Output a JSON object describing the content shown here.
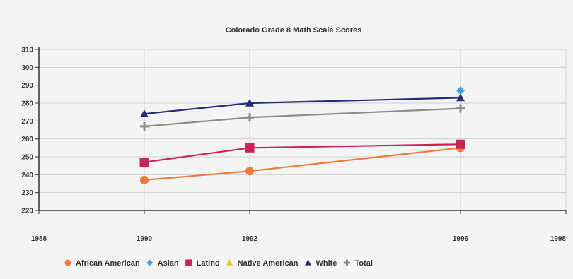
{
  "chart_data": {
    "type": "line",
    "title": "Colorado Grade 8 Math Scale Scores",
    "xlabel": "",
    "ylabel": "",
    "xlim": [
      1988,
      1998
    ],
    "ylim": [
      220,
      310
    ],
    "x_ticks": [
      "1988",
      "1990",
      "1992",
      "1996",
      "1998"
    ],
    "x_tick_values": [
      1988,
      1990,
      1992,
      1996,
      1998
    ],
    "y_ticks": [
      220,
      230,
      240,
      250,
      260,
      270,
      280,
      290,
      300,
      310
    ],
    "grid": true,
    "legend_position": "bottom",
    "series": [
      {
        "name": "African American",
        "color": "#f07a3a",
        "marker": "circle",
        "x": [
          1990,
          1992,
          1996
        ],
        "values": [
          237,
          242,
          255
        ]
      },
      {
        "name": "Asian",
        "color": "#3aa6d8",
        "marker": "diamond",
        "x": [
          1996
        ],
        "values": [
          287
        ]
      },
      {
        "name": "Latino",
        "color": "#c8245a",
        "marker": "square",
        "x": [
          1990,
          1992,
          1996
        ],
        "values": [
          247,
          255,
          257
        ]
      },
      {
        "name": "Native American",
        "color": "#e8c81a",
        "marker": "triangle",
        "x": [],
        "values": []
      },
      {
        "name": "White",
        "color": "#2a2a78",
        "marker": "triangle",
        "x": [
          1990,
          1992,
          1996
        ],
        "values": [
          274,
          280,
          283
        ]
      },
      {
        "name": "Total",
        "color": "#8c8c8c",
        "marker": "cross",
        "x": [
          1990,
          1992,
          1996
        ],
        "values": [
          267,
          272,
          277
        ]
      }
    ]
  }
}
